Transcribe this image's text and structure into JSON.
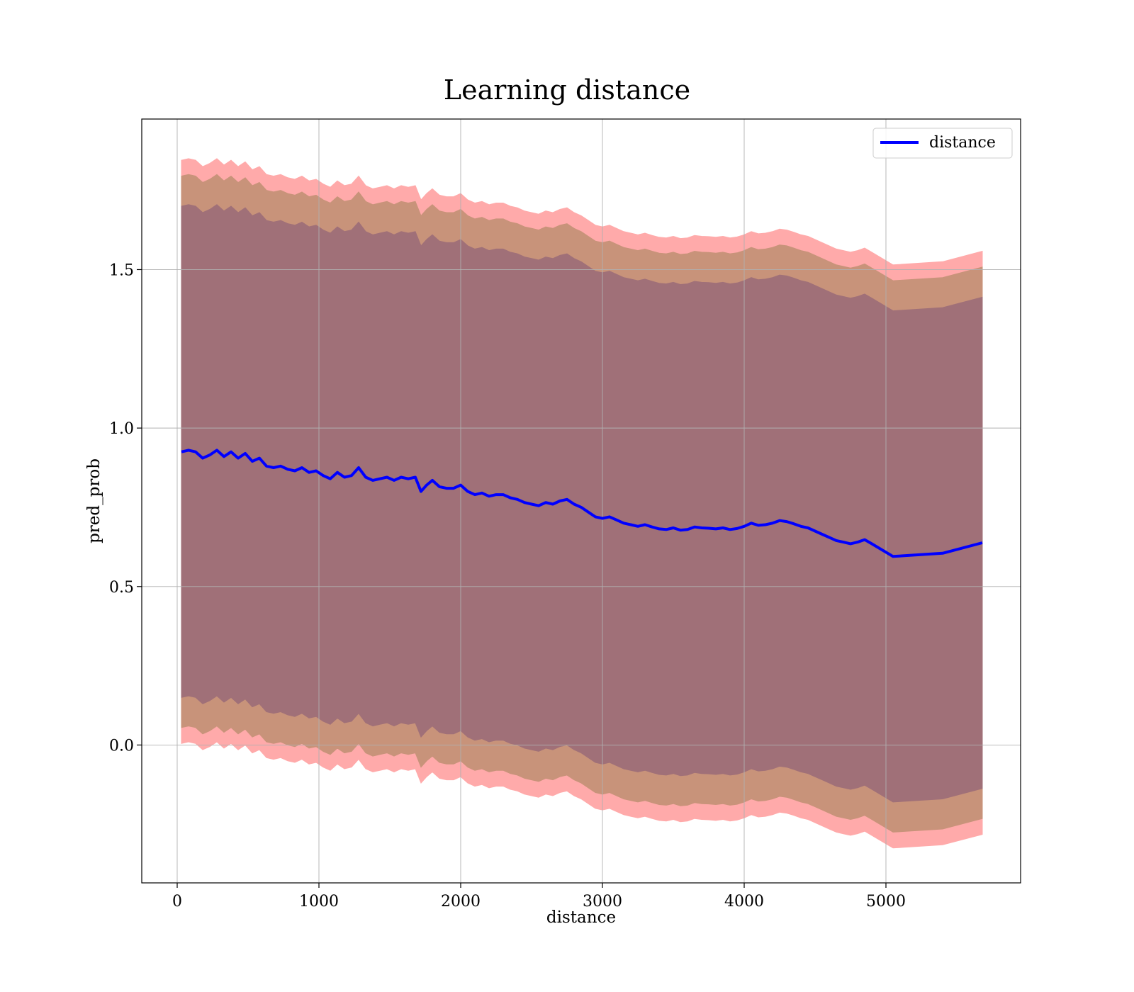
{
  "chart_data": {
    "type": "line",
    "title": "Learning distance",
    "xlabel": "distance",
    "ylabel": "pred_prob",
    "xlim": [
      -250,
      5950
    ],
    "ylim": [
      -0.435,
      1.975
    ],
    "xticks": [
      0,
      1000,
      2000,
      3000,
      4000,
      5000
    ],
    "xtick_labels": [
      "0",
      "1000",
      "2000",
      "3000",
      "4000",
      "5000"
    ],
    "yticks": [
      0.0,
      0.5,
      1.0,
      1.5
    ],
    "ytick_labels": [
      "0.0",
      "0.5",
      "1.0",
      "1.5"
    ],
    "grid": true,
    "legend": {
      "position": "top-right",
      "entries": [
        "distance"
      ]
    },
    "colors": {
      "line": "#0000ff",
      "band_outer": "#ffaaaa",
      "band_middle": "#c8937a",
      "band_inner": "#a07078"
    },
    "series": [
      {
        "name": "distance",
        "x": [
          30,
          80,
          130,
          180,
          230,
          280,
          330,
          380,
          430,
          480,
          530,
          580,
          630,
          680,
          730,
          780,
          830,
          880,
          930,
          980,
          1030,
          1080,
          1130,
          1180,
          1230,
          1280,
          1330,
          1380,
          1430,
          1480,
          1530,
          1580,
          1630,
          1680,
          1720,
          1760,
          1800,
          1850,
          1900,
          1950,
          2000,
          2050,
          2100,
          2150,
          2200,
          2250,
          2300,
          2350,
          2400,
          2450,
          2500,
          2550,
          2600,
          2650,
          2700,
          2750,
          2800,
          2850,
          2900,
          2950,
          3000,
          3050,
          3100,
          3150,
          3200,
          3250,
          3300,
          3350,
          3400,
          3450,
          3500,
          3550,
          3600,
          3650,
          3700,
          3750,
          3800,
          3850,
          3900,
          3950,
          4000,
          4050,
          4100,
          4150,
          4200,
          4250,
          4300,
          4350,
          4400,
          4450,
          4500,
          4550,
          4600,
          4650,
          4700,
          4750,
          4800,
          4850,
          4900,
          5050,
          5400,
          5680
        ],
        "y": [
          0.925,
          0.93,
          0.925,
          0.905,
          0.915,
          0.93,
          0.91,
          0.925,
          0.905,
          0.92,
          0.895,
          0.905,
          0.88,
          0.875,
          0.88,
          0.87,
          0.865,
          0.875,
          0.86,
          0.865,
          0.85,
          0.84,
          0.86,
          0.845,
          0.85,
          0.875,
          0.845,
          0.835,
          0.84,
          0.845,
          0.835,
          0.845,
          0.84,
          0.845,
          0.8,
          0.82,
          0.835,
          0.815,
          0.81,
          0.81,
          0.82,
          0.8,
          0.79,
          0.795,
          0.785,
          0.79,
          0.79,
          0.78,
          0.775,
          0.765,
          0.76,
          0.755,
          0.765,
          0.76,
          0.77,
          0.775,
          0.76,
          0.75,
          0.735,
          0.72,
          0.715,
          0.72,
          0.71,
          0.7,
          0.695,
          0.69,
          0.695,
          0.688,
          0.682,
          0.68,
          0.685,
          0.678,
          0.68,
          0.688,
          0.685,
          0.684,
          0.682,
          0.685,
          0.68,
          0.683,
          0.69,
          0.7,
          0.693,
          0.695,
          0.7,
          0.708,
          0.705,
          0.698,
          0.69,
          0.685,
          0.675,
          0.665,
          0.655,
          0.645,
          0.64,
          0.635,
          0.64,
          0.648,
          0.635,
          0.595,
          0.605,
          0.638
        ]
      }
    ],
    "bands": [
      {
        "name": "outer",
        "half_width": 0.92
      },
      {
        "name": "middle",
        "half_width": 0.87
      },
      {
        "name": "inner",
        "half_width": 0.775
      }
    ]
  }
}
